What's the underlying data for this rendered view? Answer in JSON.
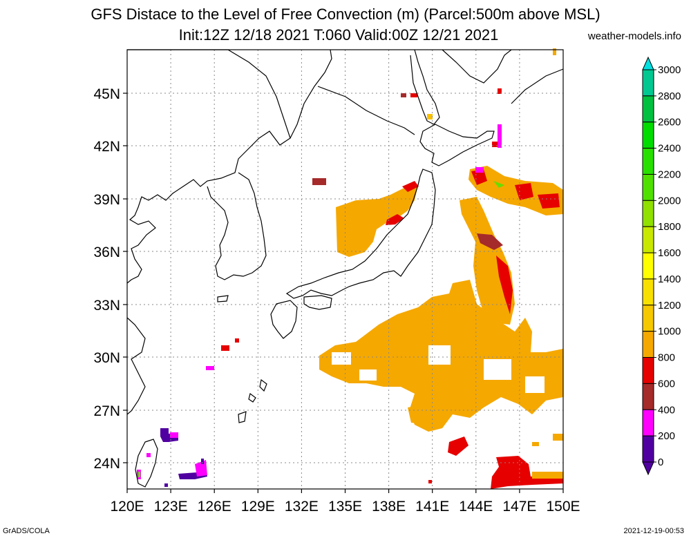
{
  "title": {
    "line1": "GFS Distace to the Level of Free Convection (m) (Parcel:500m above MSL)",
    "line2": "Init:12Z 12/18 2021 T:060 Valid:00Z 12/21 2021"
  },
  "source_site": "weather-models.info",
  "footer": {
    "left": "GrADS/COLA",
    "right": "2021-12-19-00:53"
  },
  "map": {
    "lat_labels": [
      "45N",
      "42N",
      "39N",
      "36N",
      "33N",
      "30N",
      "27N",
      "24N"
    ],
    "lon_labels": [
      "120E",
      "123E",
      "126E",
      "129E",
      "132E",
      "135E",
      "138E",
      "141E",
      "144E",
      "147E",
      "150E"
    ],
    "colors": {
      "coast": "#000000",
      "grid": "#888888",
      "orange": "#f5a800",
      "yellow_orange": "#f7c000",
      "red": "#e60000",
      "brown": "#a52a2a",
      "magenta": "#ff00ff",
      "purple": "#5000a0",
      "green": "#66dd00"
    }
  },
  "colorbar": {
    "labels": [
      "3000",
      "2800",
      "2600",
      "2400",
      "2200",
      "2000",
      "1800",
      "1600",
      "1400",
      "1200",
      "1000",
      "800",
      "600",
      "400",
      "200",
      "0"
    ],
    "colors": [
      "#00e0e0",
      "#00c890",
      "#00c040",
      "#00dc00",
      "#28e000",
      "#50e000",
      "#90e000",
      "#c8e800",
      "#ffff00",
      "#f8e000",
      "#f5c800",
      "#f5a800",
      "#e60000",
      "#a52a2a",
      "#ff00ff",
      "#5000a0"
    ]
  }
}
